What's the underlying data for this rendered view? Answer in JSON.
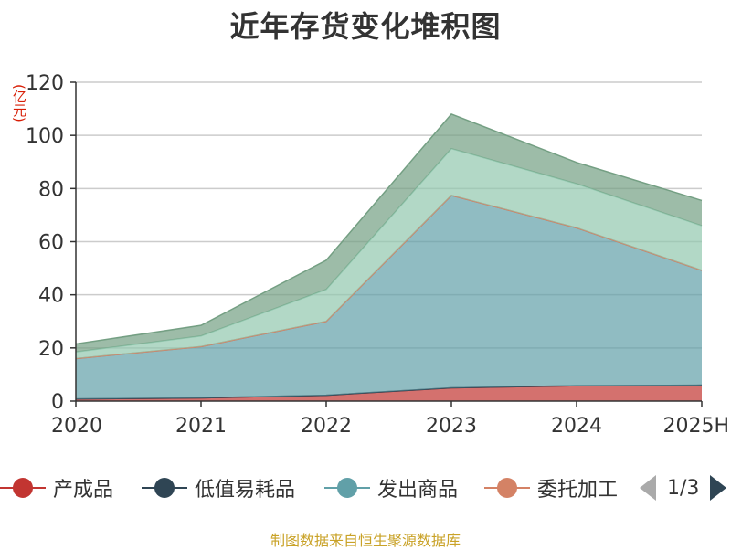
{
  "title": "近年存货变化堆积图",
  "unit_label": "(亿元)",
  "source_text": "制图数据来自恒生聚源数据库",
  "legend": {
    "items": [
      {
        "label": "产成品",
        "color": "#c23531"
      },
      {
        "label": "低值易耗品",
        "color": "#2f4554"
      },
      {
        "label": "发出商品",
        "color": "#61a0a8"
      },
      {
        "label": "委托加工",
        "color": "#d48265"
      }
    ],
    "page_text": "1/3"
  },
  "chart_data": {
    "type": "area",
    "stacked": true,
    "x": [
      "2020",
      "2021",
      "2022",
      "2023",
      "2024",
      "2025H"
    ],
    "ylim": [
      0,
      120
    ],
    "yticks": [
      0,
      20,
      40,
      60,
      80,
      100,
      120
    ],
    "grid": true,
    "legend_position": "bottom",
    "series": [
      {
        "name": "产成品",
        "color": "#c23531",
        "values": [
          0.8,
          1.2,
          2.2,
          5.0,
          5.8,
          6.0
        ]
      },
      {
        "name": "低值易耗品",
        "color": "#2f4554",
        "values": [
          0.0,
          0.0,
          0.0,
          0.0,
          0.0,
          0.0
        ]
      },
      {
        "name": "发出商品",
        "color": "#61a0a8",
        "values": [
          15.2,
          19.3,
          27.8,
          72.4,
          59.4,
          43.2
        ]
      },
      {
        "name": "委托加工",
        "color": "#d48265",
        "values": [
          0.0,
          0.0,
          0.0,
          0.0,
          0.0,
          0.0
        ]
      },
      {
        "name": "",
        "color": "#91c7ae",
        "values": [
          2.5,
          4.0,
          12.0,
          17.6,
          16.6,
          16.8
        ]
      },
      {
        "name": "",
        "color": "#749f83",
        "values": [
          3.0,
          4.0,
          11.0,
          13.0,
          8.0,
          9.5
        ]
      }
    ]
  }
}
